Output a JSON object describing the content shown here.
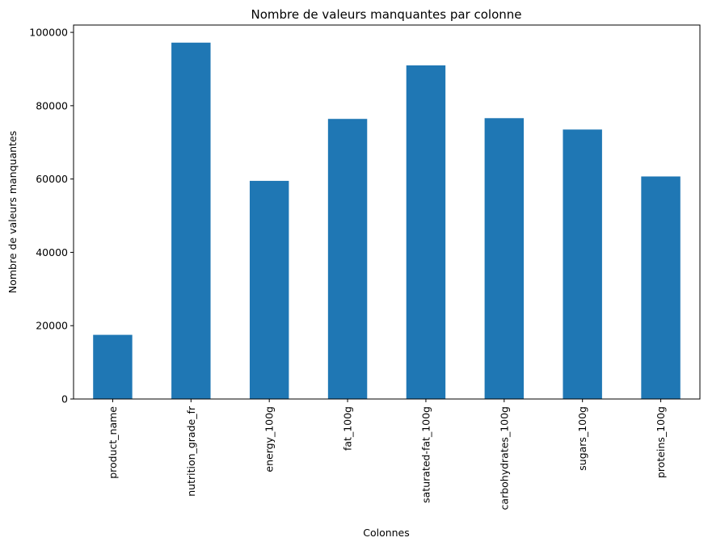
{
  "chart_data": {
    "type": "bar",
    "title": "Nombre de valeurs manquantes par colonne",
    "xlabel": "Colonnes",
    "ylabel": "Nombre de valeurs manquantes",
    "categories": [
      "product_name",
      "nutrition_grade_fr",
      "energy_100g",
      "fat_100g",
      "saturated-fat_100g",
      "carbohydrates_100g",
      "sugars_100g",
      "proteins_100g"
    ],
    "values": [
      17500,
      97200,
      59500,
      76400,
      91000,
      76600,
      73500,
      60700
    ],
    "ylim": [
      0,
      102000
    ],
    "yticks": [
      0,
      20000,
      40000,
      60000,
      80000,
      100000
    ],
    "bar_color": "#1f77b4",
    "grid": false,
    "legend": "none"
  }
}
